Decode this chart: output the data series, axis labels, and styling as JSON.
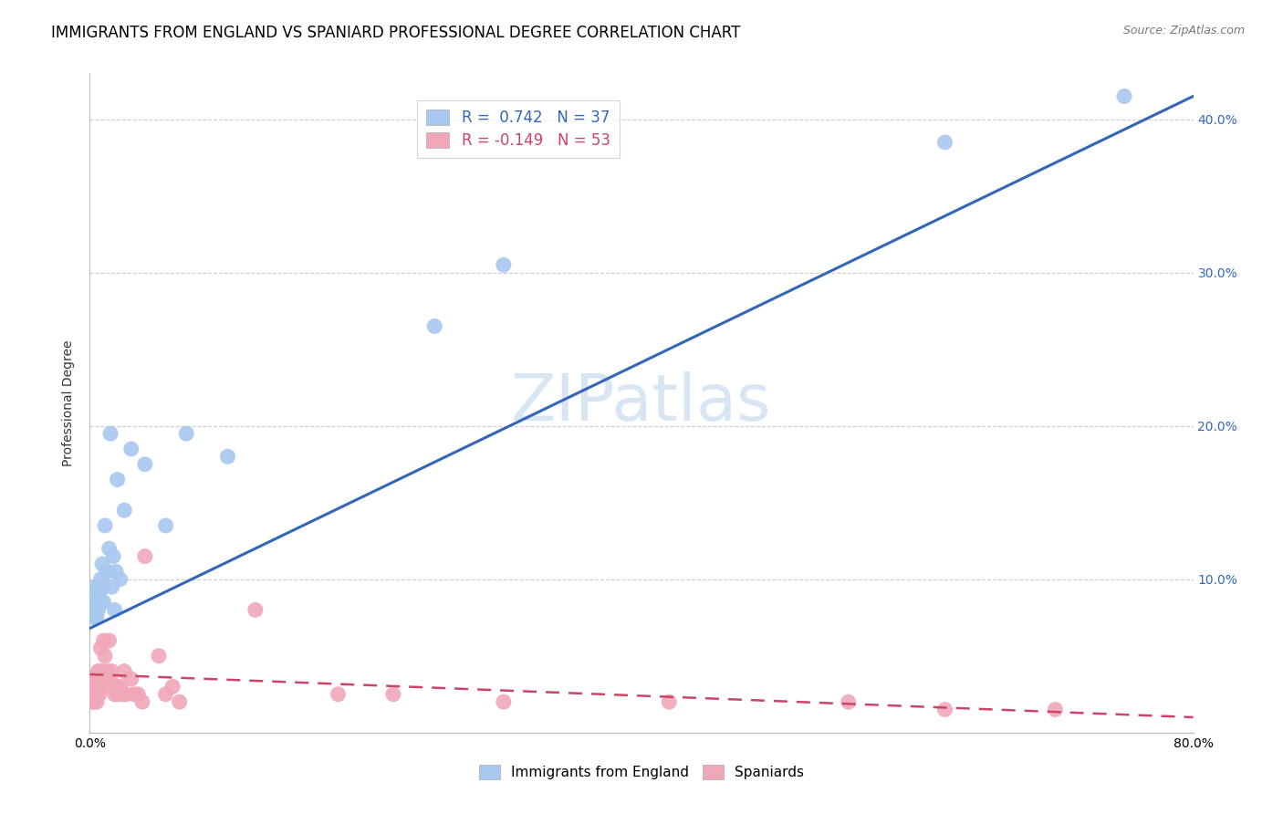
{
  "title": "IMMIGRANTS FROM ENGLAND VS SPANIARD PROFESSIONAL DEGREE CORRELATION CHART",
  "source": "Source: ZipAtlas.com",
  "ylabel": "Professional Degree",
  "xlabel": "",
  "xlim": [
    0.0,
    0.8
  ],
  "ylim": [
    0.0,
    0.43
  ],
  "blue_color": "#a8c8f0",
  "blue_line_color": "#3366bb",
  "pink_color": "#f0a8b8",
  "pink_line_color": "#cc4466",
  "blue_R": 0.742,
  "blue_N": 37,
  "pink_R": -0.149,
  "pink_N": 53,
  "blue_line_x0": 0.0,
  "blue_line_y0": 0.068,
  "blue_line_x1": 0.8,
  "blue_line_y1": 0.415,
  "pink_line_x0": 0.0,
  "pink_line_y0": 0.038,
  "pink_line_x1": 0.8,
  "pink_line_y1": 0.01,
  "blue_points_x": [
    0.002,
    0.003,
    0.004,
    0.004,
    0.005,
    0.005,
    0.005,
    0.006,
    0.006,
    0.007,
    0.008,
    0.008,
    0.009,
    0.009,
    0.01,
    0.01,
    0.011,
    0.012,
    0.013,
    0.014,
    0.015,
    0.016,
    0.017,
    0.018,
    0.019,
    0.02,
    0.022,
    0.025,
    0.03,
    0.04,
    0.055,
    0.07,
    0.1,
    0.25,
    0.3,
    0.62,
    0.75
  ],
  "blue_points_y": [
    0.08,
    0.075,
    0.085,
    0.095,
    0.075,
    0.09,
    0.085,
    0.08,
    0.095,
    0.09,
    0.085,
    0.1,
    0.095,
    0.11,
    0.085,
    0.095,
    0.135,
    0.105,
    0.105,
    0.12,
    0.195,
    0.095,
    0.115,
    0.08,
    0.105,
    0.165,
    0.1,
    0.145,
    0.185,
    0.175,
    0.135,
    0.195,
    0.18,
    0.265,
    0.305,
    0.385,
    0.415
  ],
  "pink_points_x": [
    0.002,
    0.002,
    0.003,
    0.003,
    0.003,
    0.004,
    0.004,
    0.004,
    0.005,
    0.005,
    0.005,
    0.006,
    0.006,
    0.007,
    0.007,
    0.007,
    0.008,
    0.008,
    0.009,
    0.009,
    0.01,
    0.01,
    0.011,
    0.012,
    0.013,
    0.014,
    0.015,
    0.016,
    0.017,
    0.018,
    0.019,
    0.02,
    0.022,
    0.024,
    0.025,
    0.026,
    0.03,
    0.032,
    0.035,
    0.038,
    0.04,
    0.05,
    0.055,
    0.06,
    0.065,
    0.12,
    0.18,
    0.22,
    0.3,
    0.42,
    0.55,
    0.62,
    0.7
  ],
  "pink_points_y": [
    0.03,
    0.02,
    0.035,
    0.025,
    0.02,
    0.03,
    0.025,
    0.035,
    0.03,
    0.025,
    0.02,
    0.04,
    0.03,
    0.04,
    0.035,
    0.025,
    0.03,
    0.055,
    0.04,
    0.03,
    0.06,
    0.035,
    0.05,
    0.035,
    0.04,
    0.06,
    0.035,
    0.04,
    0.03,
    0.025,
    0.03,
    0.025,
    0.03,
    0.025,
    0.04,
    0.025,
    0.035,
    0.025,
    0.025,
    0.02,
    0.115,
    0.05,
    0.025,
    0.03,
    0.02,
    0.08,
    0.025,
    0.025,
    0.02,
    0.02,
    0.02,
    0.015,
    0.015
  ],
  "title_fontsize": 12,
  "axis_label_fontsize": 10,
  "tick_fontsize": 10,
  "legend_fontsize": 12,
  "watermark_fontsize": 52,
  "source_fontsize": 9,
  "watermark_text": "ZIPatlas",
  "watermark_color": "#c8dcf0"
}
